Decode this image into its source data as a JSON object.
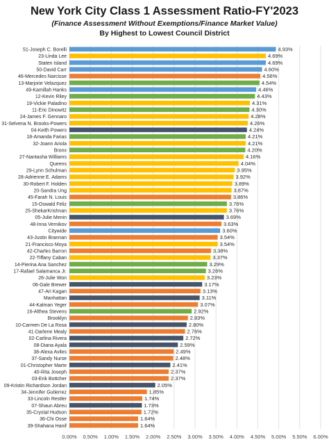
{
  "chart_data": {
    "type": "bar",
    "orientation": "horizontal",
    "title": "New York City Class 1 Assessment Ratio-FY'2023",
    "subtitle": "(Finance Assessment Without Exemptions/Finance Market Value)",
    "subtitle2": "By Highest to Lowest Council District",
    "xlim": [
      0,
      6.0
    ],
    "xticks": [
      "0.00%",
      "0.50%",
      "1.00%",
      "1.50%",
      "2.00%",
      "2.50%",
      "3.00%",
      "3.50%",
      "4.00%",
      "4.50%",
      "5.00%",
      "5.50%",
      "6.00%"
    ],
    "grid": true,
    "colors": {
      "blue": "#5b9bd5",
      "yellow": "#ffc000",
      "green": "#70ad47",
      "navy": "#44546a",
      "orange": "#ed7d31"
    },
    "categories": [
      "51-Joseph C. Borelli",
      "23-Linda Lee",
      "Staten Island",
      "50-David Carr",
      "46-Mercedes Narcisse",
      "13-Marjorie Velazquez",
      "49-Kamillah Hanks",
      "12-Kevin Riley",
      "19-Vickie Paladino",
      "11-Eric Dinowitz",
      "24-James F. Gennaro",
      "31-Selvena N. Brooks-Powers",
      "04-Keith Powers",
      "18-Amanda Farias",
      "32-Joann Ariola",
      "Bronx",
      "27-Nantasha Williams",
      "Queens",
      "29-Lynn Schulman",
      "28-Adrienne E. Adams",
      "30-Robert F. Holden",
      "20-Sandra Ung",
      "45-Farah N. Louis",
      "15-Oswald Feliz",
      "25-ShekarKrishnan",
      "05-Julie Menin",
      "48-Inna Vernikov",
      "Citywide",
      "43-Justin Brannan",
      "21-Francisco Moya",
      "42-Charles Barron",
      "22-Tiffany Caban",
      "14-Pierina Ana Sanchez",
      "17-Rafael Salamanca Jr.",
      "26-Julie Won",
      "06-Gale Brewer",
      "47-Ari Kagan",
      "Manhattan",
      "44-Kalman Yeger",
      "16-Althea Stevens",
      "Brooklyn",
      "10-Carmen De La Rosa",
      "41-Darlene Mealy",
      "02-Carlina Rivera",
      "08-Diana Ayala",
      "38-Alexa Aviles",
      "37-Sandy Nurse",
      "01-Christopher Marte",
      "40-Rita Joseph",
      "03-Erik Bottcher",
      "09-Kristin  Richardson Jordan",
      "34-Jennifer Gutierrez",
      "33-Lincoln Restler",
      "07-Shaun Abreu",
      "35-Crystal Hudson",
      "36-Chi Osse",
      "39-Shahana Hanif"
    ],
    "values": [
      4.93,
      4.69,
      4.69,
      4.6,
      4.56,
      4.54,
      4.46,
      4.43,
      4.31,
      4.3,
      4.28,
      4.26,
      4.24,
      4.21,
      4.21,
      4.2,
      4.16,
      4.04,
      3.95,
      3.92,
      3.89,
      3.87,
      3.86,
      3.76,
      3.76,
      3.69,
      3.63,
      3.6,
      3.54,
      3.54,
      3.38,
      3.37,
      3.29,
      3.26,
      3.23,
      3.17,
      3.13,
      3.11,
      3.07,
      2.92,
      2.83,
      2.8,
      2.76,
      2.72,
      2.59,
      2.49,
      2.48,
      2.41,
      2.37,
      2.37,
      2.05,
      1.85,
      1.74,
      1.73,
      1.72,
      1.64,
      1.64
    ],
    "value_labels": [
      "4.93%",
      "4.69%",
      "4.69%",
      "4.60%",
      "4.56%",
      "4.54%",
      "4.46%",
      "4.43%",
      "4.31%",
      "4.30%",
      "4.28%",
      "4.26%",
      "4.24%",
      "4.21%",
      "4.21%",
      "4.20%",
      "4.16%",
      "4.04%",
      "3.95%",
      "3.92%",
      "3.89%",
      "3.87%",
      "3.86%",
      "3.76%",
      "3.76%",
      "3.69%",
      "3.63%",
      "3.60%",
      "3.54%",
      "3.54%",
      "3.38%",
      "3.37%",
      "3.29%",
      "3.26%",
      "3.23%",
      "3.17%",
      "3.13%",
      "3.11%",
      "3.07%",
      "2.92%",
      "2.83%",
      "2.80%",
      "2.76%",
      "2.72%",
      "2.59%",
      "2.49%",
      "2.48%",
      "2.41%",
      "2.37%",
      "2.37%",
      "2.05%",
      "1.85%",
      "1.74%",
      "1.73%",
      "1.72%",
      "1.64%",
      "1.64%"
    ],
    "bar_colors": [
      "blue",
      "yellow",
      "blue",
      "blue",
      "orange",
      "green",
      "blue",
      "green",
      "yellow",
      "green",
      "yellow",
      "yellow",
      "navy",
      "green",
      "yellow",
      "green",
      "yellow",
      "yellow",
      "yellow",
      "yellow",
      "yellow",
      "yellow",
      "orange",
      "green",
      "yellow",
      "navy",
      "orange",
      "blue",
      "orange",
      "yellow",
      "orange",
      "yellow",
      "green",
      "green",
      "yellow",
      "navy",
      "orange",
      "navy",
      "orange",
      "green",
      "orange",
      "navy",
      "orange",
      "navy",
      "navy",
      "orange",
      "orange",
      "navy",
      "orange",
      "orange",
      "navy",
      "orange",
      "orange",
      "navy",
      "orange",
      "orange",
      "orange"
    ]
  }
}
